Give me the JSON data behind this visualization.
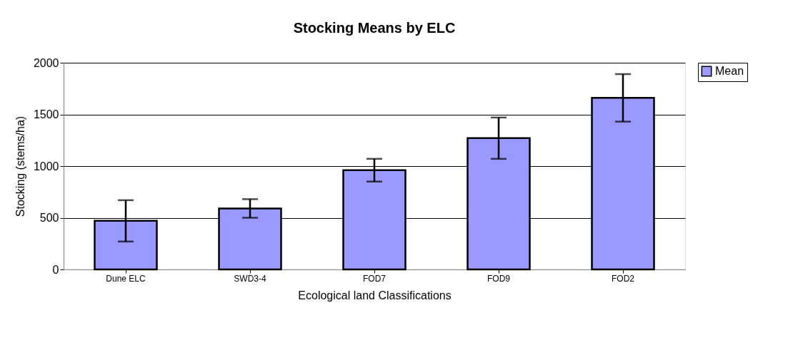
{
  "chart_data": {
    "type": "bar",
    "title": "Stocking Means by ELC",
    "xlabel": "Ecological land Classifications",
    "ylabel": "Stocking (stems/ha)",
    "categories": [
      "Dune ELC",
      "SWD3-4",
      "FOD7",
      "FOD9",
      "FOD2"
    ],
    "series": [
      {
        "name": "Mean",
        "color": "#9999ff",
        "values": [
          470,
          590,
          960,
          1270,
          1660
        ],
        "errors": [
          200,
          90,
          110,
          200,
          230
        ]
      }
    ],
    "ylim": [
      0,
      2000
    ],
    "yticks": [
      0,
      500,
      1000,
      1500,
      2000
    ],
    "grid": "y",
    "legend": "right"
  }
}
